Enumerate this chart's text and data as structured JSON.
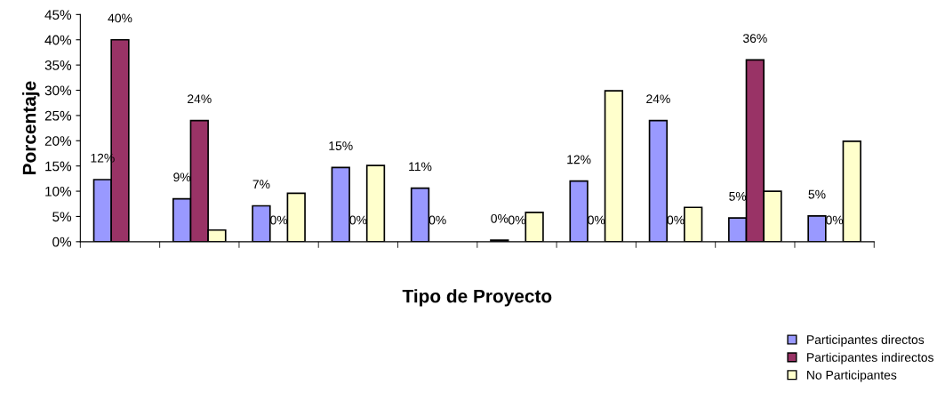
{
  "chart_data": {
    "type": "bar",
    "xlabel": "Tipo de Proyecto",
    "ylabel": "Porcentaje",
    "categories": [
      null,
      null,
      null,
      null,
      null,
      null,
      null,
      null,
      null,
      null
    ],
    "series": [
      {
        "name": "Participantes directos",
        "color": "#9999ff",
        "values": [
          12.3,
          8.5,
          7.1,
          14.7,
          10.6,
          0.3,
          12.0,
          24.0,
          4.7,
          5.1
        ],
        "value_labels": [
          "12%",
          "9%",
          "7%",
          "15%",
          "11%",
          "0%",
          "12%",
          "24%",
          "5%",
          "5%"
        ]
      },
      {
        "name": "Participantes indirectos",
        "color": "#993366",
        "values": [
          40,
          24,
          0,
          0,
          0,
          0,
          0,
          0,
          36,
          0
        ],
        "value_labels": [
          "40%",
          "24%",
          "0%",
          "0%",
          "0%",
          "0%",
          "0%",
          "0%",
          "36%",
          "0%"
        ]
      },
      {
        "name": "No Participantes",
        "color": "#ffffcc",
        "values": [
          0,
          2.3,
          9.6,
          15.1,
          0,
          5.8,
          29.9,
          6.8,
          10.0,
          19.9
        ]
      }
    ],
    "ylim": [
      0,
      45
    ],
    "yticks": [
      {
        "value": 0,
        "label": "0%"
      },
      {
        "value": 5,
        "label": "5%"
      },
      {
        "value": 10,
        "label": "10%"
      },
      {
        "value": 15,
        "label": "15%"
      },
      {
        "value": 20,
        "label": "20%"
      },
      {
        "value": 25,
        "label": "25%"
      },
      {
        "value": 30,
        "label": "30%"
      },
      {
        "value": 35,
        "label": "35%"
      },
      {
        "value": 40,
        "label": "40%"
      },
      {
        "value": 45,
        "label": "45%"
      }
    ],
    "grid": false,
    "legend": "bottom right"
  }
}
